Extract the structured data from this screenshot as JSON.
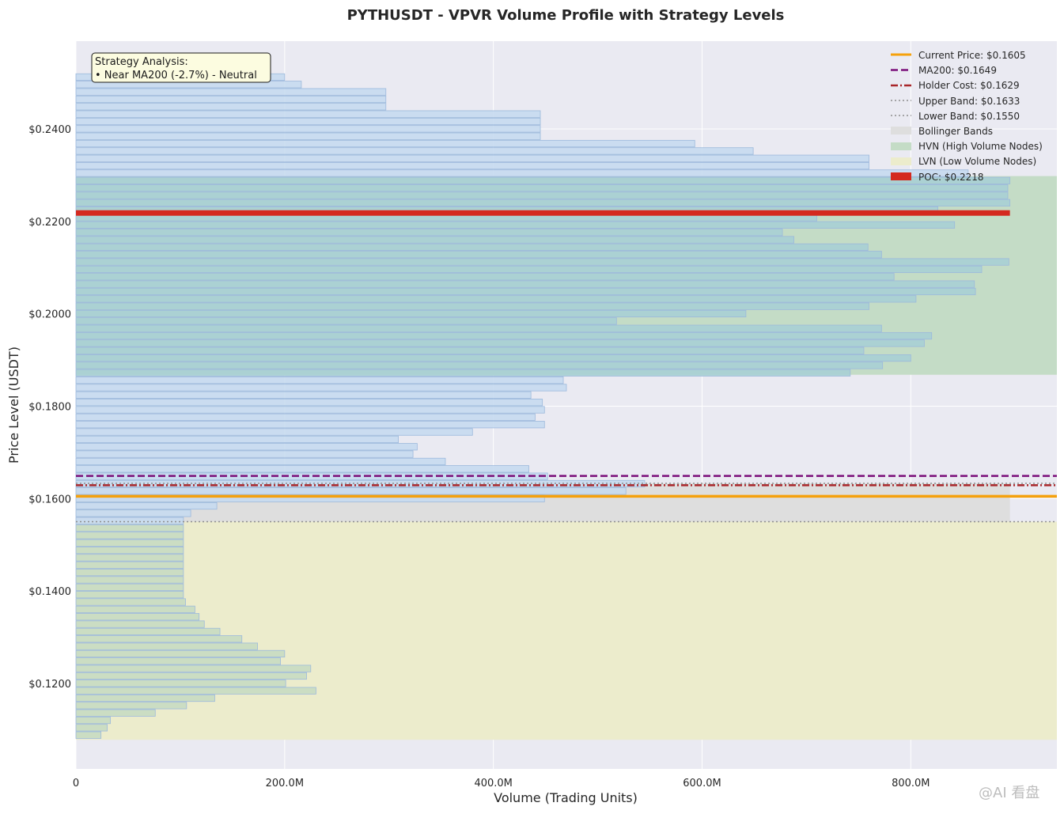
{
  "chart_data": {
    "type": "bar",
    "orientation": "horizontal",
    "title": "PYTHUSDT - VPVR Volume Profile with Strategy Levels",
    "xlabel": "Volume (Trading Units)",
    "ylabel": "Price Level (USDT)",
    "xlim": [
      0,
      940000000
    ],
    "ylim": [
      0.1015,
      0.259
    ],
    "xticks": [
      {
        "value": 0,
        "label": "0"
      },
      {
        "value": 200000000,
        "label": "200.0M"
      },
      {
        "value": 400000000,
        "label": "400.0M"
      },
      {
        "value": 600000000,
        "label": "600.0M"
      },
      {
        "value": 800000000,
        "label": "800.0M"
      }
    ],
    "yticks": [
      {
        "value": 0.12,
        "label": "$0.1200"
      },
      {
        "value": 0.14,
        "label": "$0.1400"
      },
      {
        "value": 0.16,
        "label": "$0.1600"
      },
      {
        "value": 0.18,
        "label": "$0.1800"
      },
      {
        "value": 0.2,
        "label": "$0.2000"
      },
      {
        "value": 0.22,
        "label": "$0.2200"
      },
      {
        "value": 0.24,
        "label": "$0.2400"
      }
    ],
    "grid": true,
    "legend_position": "top-right",
    "bin_start": 0.1081,
    "bin_size": 0.0016,
    "volumes_millions": [
      24,
      30,
      33,
      76,
      106,
      133,
      230,
      201,
      221,
      225,
      196,
      200,
      174,
      159,
      138,
      123,
      118,
      114,
      105,
      103,
      103,
      103,
      103,
      103,
      103,
      103,
      103,
      103,
      103,
      103,
      110,
      135,
      449,
      527,
      545,
      452,
      434,
      354,
      323,
      327,
      309,
      380,
      449,
      440,
      449,
      447,
      436,
      470,
      467,
      742,
      773,
      800,
      755,
      813,
      820,
      772,
      518,
      642,
      760,
      805,
      862,
      861,
      784,
      868,
      894,
      772,
      759,
      688,
      677,
      842,
      710,
      826,
      895,
      893,
      893,
      895,
      855,
      760,
      760,
      649,
      593,
      445,
      445,
      445,
      445,
      297,
      297,
      297,
      216,
      200
    ],
    "bar_colors": {
      "lvn_bar": "#c8dcc2",
      "hvn_bar": "#a9cfd4",
      "normal_bar": "#c7daf0",
      "bar_edge": "#9cb9dc"
    },
    "levels": {
      "current_price": {
        "value": 0.1605,
        "label": "Current Price: $0.1605",
        "color": "#f5a10c"
      },
      "ma200": {
        "value": 0.1649,
        "label": "MA200: $0.1649",
        "color": "#7a0e7a"
      },
      "holder_cost": {
        "value": 0.1629,
        "label": "Holder Cost: $0.1629",
        "color": "#a8262a"
      },
      "upper_band": {
        "value": 0.1633,
        "label": "Upper Band: $0.1633",
        "color": "#8e8e8e"
      },
      "lower_band": {
        "value": 0.155,
        "label": "Lower Band: $0.1550",
        "color": "#8e8e8e"
      },
      "poc": {
        "value": 0.2218,
        "label": "POC: $0.2218",
        "color": "#d42a1f"
      }
    },
    "zones": {
      "bollinger": {
        "label": "Bollinger Bands",
        "from": 0.155,
        "to": 0.1633,
        "color": "#dedede"
      },
      "hvn": {
        "label": "HVN (High Volume Nodes)",
        "from": 0.1868,
        "to": 0.2298,
        "color": "#c4dcc6"
      },
      "lvn": {
        "label": "LVN (Low Volume Nodes)",
        "from": 0.1078,
        "to": 0.155,
        "color": "#ececcc"
      }
    },
    "annotation": {
      "line1": "Strategy Analysis:",
      "line2": "• Near MA200 (-2.7%) - Neutral"
    }
  },
  "watermark": "@AI 看盘",
  "colors": {
    "plot_bg": "#eaeaf2",
    "grid": "#ffffff",
    "annotation_bg": "#fcfce0"
  }
}
